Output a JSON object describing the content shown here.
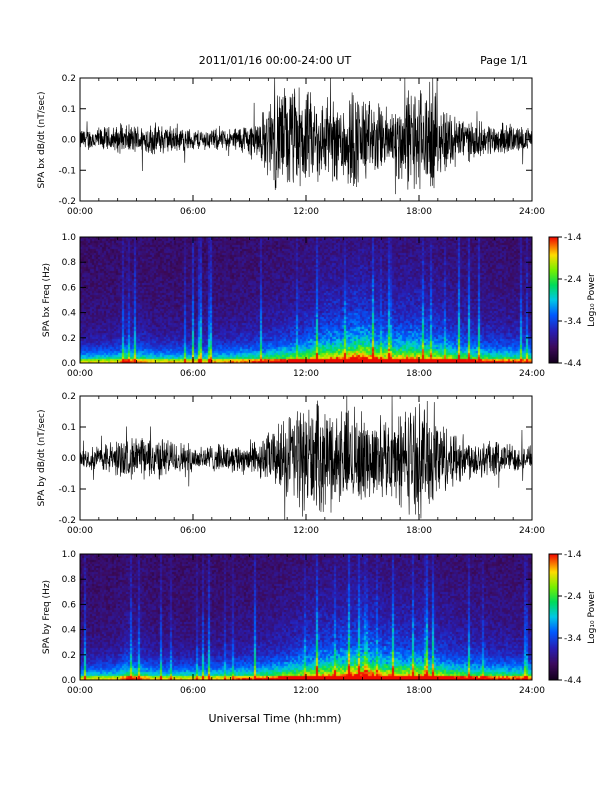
{
  "page": {
    "header": "2011/01/16  00:00-24:00 UT",
    "page_label": "Page 1/1",
    "footer_xlabel": "Universal Time (hh:mm)"
  },
  "colors": {
    "trace": "#000000",
    "axis": "#000000",
    "background": "#ffffff"
  },
  "chart_data": [
    {
      "type": "line",
      "ylabel": "SPA bx dB/dt (nT/sec)",
      "xlim_hours": [
        0,
        24
      ],
      "ylim": [
        -0.2,
        0.2
      ],
      "y_ticks": [
        "0.2",
        "0.1",
        "0.0",
        "-0.1",
        "-0.2"
      ],
      "x_ticks": [
        "00:00",
        "06:00",
        "12:00",
        "18:00",
        "24:00"
      ],
      "amplitude_envelope": {
        "hours": [
          0,
          2,
          4,
          6,
          8,
          9.5,
          10.5,
          11.5,
          12.5,
          13.5,
          14.5,
          15.5,
          16.5,
          17.5,
          18.5,
          19.5,
          20.5,
          21.5,
          22.5,
          24
        ],
        "amplitude": [
          0.04,
          0.05,
          0.06,
          0.04,
          0.04,
          0.08,
          0.2,
          0.2,
          0.16,
          0.15,
          0.2,
          0.14,
          0.12,
          0.2,
          0.2,
          0.12,
          0.08,
          0.06,
          0.06,
          0.04
        ]
      }
    },
    {
      "type": "heatmap",
      "ylabel": "SPA bx Freq (Hz)",
      "colorbar_label": "Log₁₀ Power",
      "colorbar_ticks": [
        "-1.4",
        "-2.4",
        "-3.4",
        "-4.4"
      ],
      "zlim": [
        -4.4,
        -1.4
      ],
      "xlim_hours": [
        0,
        24
      ],
      "ylim": [
        0,
        1.0
      ],
      "y_ticks": [
        "1.0",
        "0.8",
        "0.6",
        "0.4",
        "0.2",
        "0.0"
      ],
      "x_ticks": [
        "00:00",
        "06:00",
        "12:00",
        "18:00",
        "24:00"
      ],
      "activity_profile": {
        "hours": [
          0,
          2,
          2.5,
          4,
          6,
          8,
          10,
          11,
          12,
          13,
          14,
          15,
          16,
          17,
          18,
          19,
          20,
          21,
          22,
          24
        ],
        "level": [
          0.15,
          0.2,
          0.35,
          0.2,
          0.2,
          0.25,
          0.35,
          0.45,
          0.55,
          0.75,
          0.8,
          0.95,
          0.7,
          0.7,
          0.75,
          0.6,
          0.5,
          0.4,
          0.35,
          0.3
        ]
      }
    },
    {
      "type": "line",
      "ylabel": "SPA by dB/dt (nT/sec)",
      "xlim_hours": [
        0,
        24
      ],
      "ylim": [
        -0.2,
        0.2
      ],
      "y_ticks": [
        "0.2",
        "0.1",
        "0.0",
        "-0.1",
        "-0.2"
      ],
      "x_ticks": [
        "00:00",
        "06:00",
        "12:00",
        "18:00",
        "24:00"
      ],
      "amplitude_envelope": {
        "hours": [
          0,
          2,
          4,
          6,
          8,
          9.5,
          10.5,
          11.5,
          12.5,
          13.5,
          14.5,
          15.5,
          16.5,
          17.5,
          18.5,
          19.5,
          20.5,
          21.5,
          22.5,
          24
        ],
        "amplitude": [
          0.03,
          0.07,
          0.08,
          0.05,
          0.05,
          0.07,
          0.12,
          0.2,
          0.2,
          0.18,
          0.18,
          0.14,
          0.15,
          0.2,
          0.2,
          0.12,
          0.08,
          0.07,
          0.06,
          0.04
        ]
      }
    },
    {
      "type": "heatmap",
      "ylabel": "SPA by Freq (Hz)",
      "colorbar_label": "Log₁₀ Power",
      "colorbar_ticks": [
        "-1.4",
        "-2.4",
        "-3.4",
        "-4.4"
      ],
      "zlim": [
        -4.4,
        -1.4
      ],
      "xlim_hours": [
        0,
        24
      ],
      "ylim": [
        0,
        1.0
      ],
      "y_ticks": [
        "1.0",
        "0.8",
        "0.6",
        "0.4",
        "0.2",
        "0.0"
      ],
      "x_ticks": [
        "00:00",
        "06:00",
        "12:00",
        "18:00",
        "24:00"
      ],
      "activity_profile": {
        "hours": [
          0,
          2,
          2.5,
          4,
          6,
          8,
          10,
          11,
          12,
          13,
          14,
          15,
          16,
          17,
          18,
          19,
          20,
          21,
          22,
          24
        ],
        "level": [
          0.15,
          0.2,
          0.4,
          0.2,
          0.2,
          0.25,
          0.35,
          0.45,
          0.6,
          0.7,
          0.8,
          0.95,
          0.75,
          0.65,
          0.7,
          0.55,
          0.45,
          0.4,
          0.35,
          0.3
        ]
      }
    }
  ]
}
